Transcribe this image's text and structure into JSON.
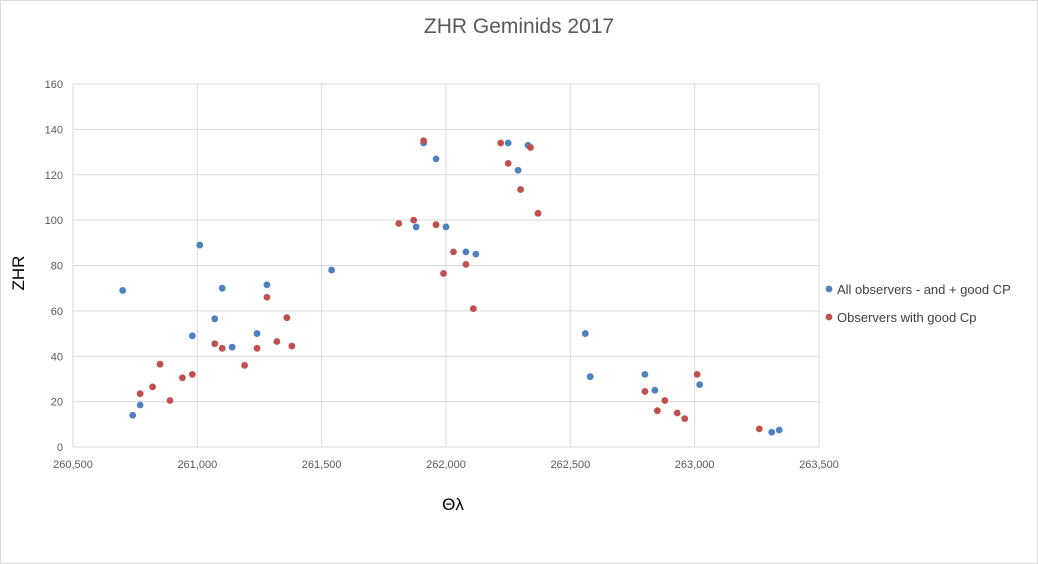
{
  "chart_data": {
    "type": "scatter",
    "title": "ZHR Geminids 2017",
    "xlabel": "Θλ",
    "ylabel": "ZHR",
    "xlim": [
      260.5,
      263.5
    ],
    "ylim": [
      0,
      160
    ],
    "x_ticks": [
      {
        "value": 260.5,
        "label": "260,500"
      },
      {
        "value": 261.0,
        "label": "261,000"
      },
      {
        "value": 261.5,
        "label": "261,500"
      },
      {
        "value": 262.0,
        "label": "262,000"
      },
      {
        "value": 262.5,
        "label": "262,500"
      },
      {
        "value": 263.0,
        "label": "263,000"
      },
      {
        "value": 263.5,
        "label": "263,500"
      }
    ],
    "y_ticks": [
      {
        "value": 0,
        "label": "0"
      },
      {
        "value": 20,
        "label": "20"
      },
      {
        "value": 40,
        "label": "40"
      },
      {
        "value": 60,
        "label": "60"
      },
      {
        "value": 80,
        "label": "80"
      },
      {
        "value": 100,
        "label": "100"
      },
      {
        "value": 120,
        "label": "120"
      },
      {
        "value": 140,
        "label": "140"
      },
      {
        "value": 160,
        "label": "160"
      }
    ],
    "grid": true,
    "legend_position": "right",
    "series": [
      {
        "name": "All observers - and + good CP",
        "color": "#4f81bd",
        "points": [
          [
            260.7,
            69
          ],
          [
            260.74,
            14
          ],
          [
            260.77,
            18.5
          ],
          [
            260.98,
            49
          ],
          [
            261.01,
            89
          ],
          [
            261.07,
            56.5
          ],
          [
            261.1,
            70
          ],
          [
            261.14,
            44
          ],
          [
            261.24,
            50
          ],
          [
            261.28,
            71.5
          ],
          [
            261.54,
            78
          ],
          [
            261.88,
            97
          ],
          [
            261.91,
            134
          ],
          [
            261.96,
            127
          ],
          [
            262.0,
            97
          ],
          [
            262.08,
            86
          ],
          [
            262.12,
            85
          ],
          [
            262.25,
            134
          ],
          [
            262.29,
            122
          ],
          [
            262.33,
            133
          ],
          [
            262.56,
            50
          ],
          [
            262.58,
            31
          ],
          [
            262.8,
            32
          ],
          [
            262.84,
            25
          ],
          [
            263.02,
            27.5
          ],
          [
            263.31,
            6.5
          ],
          [
            263.34,
            7.5
          ]
        ]
      },
      {
        "name": "Observers with good Cp",
        "color": "#c0504d",
        "points": [
          [
            260.77,
            23.5
          ],
          [
            260.82,
            26.5
          ],
          [
            260.85,
            36.5
          ],
          [
            260.89,
            20.5
          ],
          [
            260.94,
            30.5
          ],
          [
            260.98,
            32
          ],
          [
            261.07,
            45.5
          ],
          [
            261.1,
            43.5
          ],
          [
            261.19,
            36
          ],
          [
            261.24,
            43.5
          ],
          [
            261.28,
            66
          ],
          [
            261.32,
            46.5
          ],
          [
            261.36,
            57
          ],
          [
            261.38,
            44.5
          ],
          [
            261.81,
            98.5
          ],
          [
            261.87,
            100
          ],
          [
            261.91,
            135
          ],
          [
            261.96,
            98
          ],
          [
            261.99,
            76.5
          ],
          [
            262.03,
            86
          ],
          [
            262.08,
            80.5
          ],
          [
            262.11,
            61
          ],
          [
            262.22,
            134
          ],
          [
            262.25,
            125
          ],
          [
            262.3,
            113.5
          ],
          [
            262.34,
            132
          ],
          [
            262.37,
            103
          ],
          [
            262.8,
            24.5
          ],
          [
            262.85,
            16
          ],
          [
            262.88,
            20.5
          ],
          [
            262.93,
            15
          ],
          [
            262.96,
            12.5
          ],
          [
            263.01,
            32
          ],
          [
            263.26,
            8
          ]
        ]
      }
    ]
  }
}
